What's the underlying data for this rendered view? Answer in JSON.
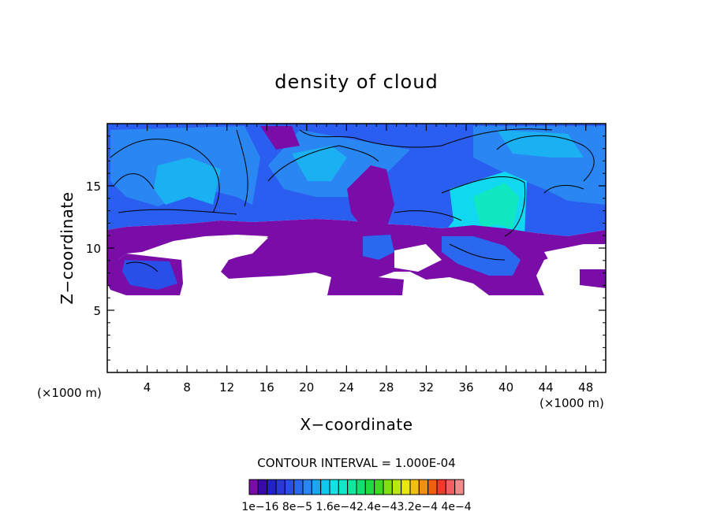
{
  "chart_data": {
    "type": "heatmap",
    "title": "density of cloud",
    "xlabel": "X−coordinate",
    "ylabel": "Z−coordinate",
    "x_unit_left": "(×1000 m)",
    "x_unit_right": "(×1000 m)",
    "xlim": [
      0,
      50
    ],
    "ylim": [
      0,
      20
    ],
    "xticks": [
      4,
      8,
      12,
      16,
      20,
      24,
      28,
      32,
      36,
      40,
      44,
      48
    ],
    "yticks": [
      5,
      10,
      15
    ],
    "contour_interval_text": "CONTOUR INTERVAL = 1.000E-04",
    "colorbar": {
      "label_text": "1e−16 8e−5 1.6e−42.4e−43.2e−4 4e−4",
      "levels": 24,
      "colors": [
        "#7a0ca8",
        "#3a0aa8",
        "#2222c8",
        "#2a38d8",
        "#2a4ee8",
        "#2a68f0",
        "#2a86f2",
        "#1aa6f2",
        "#10c8f0",
        "#10e2e8",
        "#10e8c8",
        "#10e8a0",
        "#10e070",
        "#20d840",
        "#40d820",
        "#80e010",
        "#b8e810",
        "#e8e810",
        "#f0c010",
        "#f09010",
        "#f06010",
        "#f03a2a",
        "#f06060",
        "#f08c8c"
      ]
    },
    "field_colors": {
      "purple": "#7a0ca8",
      "dark_blue": "#2a2ae0",
      "blue": "#2a5ef0",
      "mid_blue": "#2a7ef2",
      "light_blue": "#1ab0f2",
      "cyan": "#10d8f0",
      "teal": "#10e8c0"
    }
  }
}
